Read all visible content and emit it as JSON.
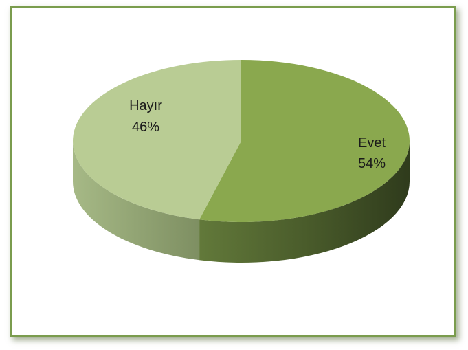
{
  "chart_data": {
    "type": "pie",
    "title": "",
    "legend": "none",
    "slices": [
      {
        "label": "Evet",
        "value": 54,
        "percent_label": "54%",
        "color": "#8aa84e"
      },
      {
        "label": "Hayır",
        "value": 46,
        "percent_label": "46%",
        "color": "#b9cc94"
      }
    ]
  },
  "colors": {
    "frame_border": "#7a9c4d",
    "evet_side_dark": "#3b4a22",
    "evet_side_light": "#5b7034",
    "hayir_side_dark": "#6e8254",
    "hayir_side_light": "#9fb07f"
  }
}
